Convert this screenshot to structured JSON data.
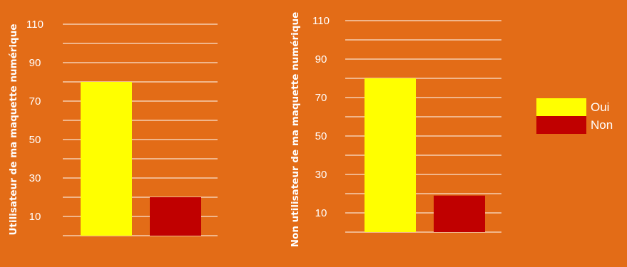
{
  "colors": {
    "background": "#E36C17",
    "grid": "#FFFFFF",
    "oui": "#FFFF00",
    "non": "#C00000",
    "text": "#FFFFFF"
  },
  "legend": [
    {
      "label": "Oui",
      "color": "#FFFF00"
    },
    {
      "label": "Non",
      "color": "#C00000"
    }
  ],
  "chart_data": [
    {
      "type": "bar",
      "categories": [
        "Oui",
        "Non"
      ],
      "values": [
        80,
        20
      ],
      "title": "",
      "xlabel": "",
      "ylabel": "Utilisateur de ma maquette numérique",
      "ylim": [
        0,
        120
      ],
      "ytick_labels": [
        "10",
        "30",
        "50",
        "70",
        "90",
        "110"
      ],
      "grid": true,
      "legend_position": "right"
    },
    {
      "type": "bar",
      "categories": [
        "Oui",
        "Non"
      ],
      "values": [
        80,
        19
      ],
      "title": "",
      "xlabel": "",
      "ylabel": "Non utilisateur de ma maquette numérique",
      "ylim": [
        0,
        120
      ],
      "ytick_labels": [
        "10",
        "30",
        "50",
        "70",
        "90",
        "110"
      ],
      "grid": true,
      "legend_position": "right"
    }
  ]
}
